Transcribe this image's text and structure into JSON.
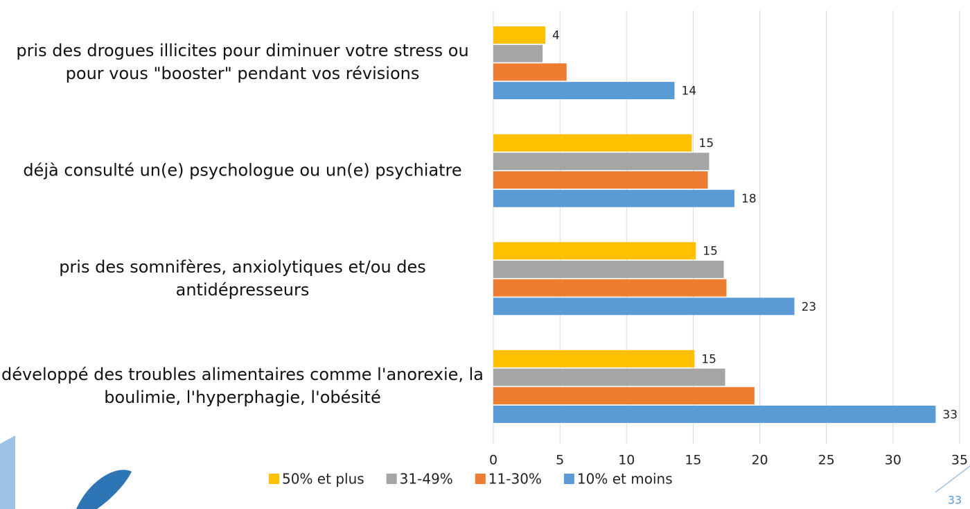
{
  "chart_data": {
    "type": "hbar",
    "categories": [
      "pris des drogues illicites pour diminuer votre stress ou pour vous \"booster\" pendant vos révisions",
      "déjà consulté un(e) psychologue ou un(e) psychiatre",
      "pris  des somnifères, anxiolytiques et/ou des antidépresseurs",
      "développé des troubles alimentaires comme l'anorexie, la boulimie, l'hyperphagie, l'obésité"
    ],
    "series": [
      {
        "name": "50% et plus",
        "color": "#ffc000",
        "values": [
          3.9,
          14.9,
          15.2,
          15.1
        ],
        "value_labels": [
          "4",
          "15",
          "15",
          "15"
        ]
      },
      {
        "name": "31-49%",
        "color": "#a5a5a5",
        "values": [
          3.7,
          16.2,
          17.3,
          17.4
        ]
      },
      {
        "name": "11-30%",
        "color": "#ed7d31",
        "values": [
          5.5,
          16.1,
          17.5,
          19.6
        ]
      },
      {
        "name": "10% et moins",
        "color": "#5b9bd5",
        "values": [
          13.6,
          18.1,
          22.6,
          33.2
        ],
        "value_labels": [
          "14",
          "18",
          "23",
          "33"
        ]
      }
    ],
    "xlim": [
      0,
      35
    ],
    "xticks": [
      0,
      5,
      10,
      15,
      20,
      25,
      30,
      35
    ],
    "grid": true,
    "legend": "bottom",
    "page_number": "33"
  }
}
